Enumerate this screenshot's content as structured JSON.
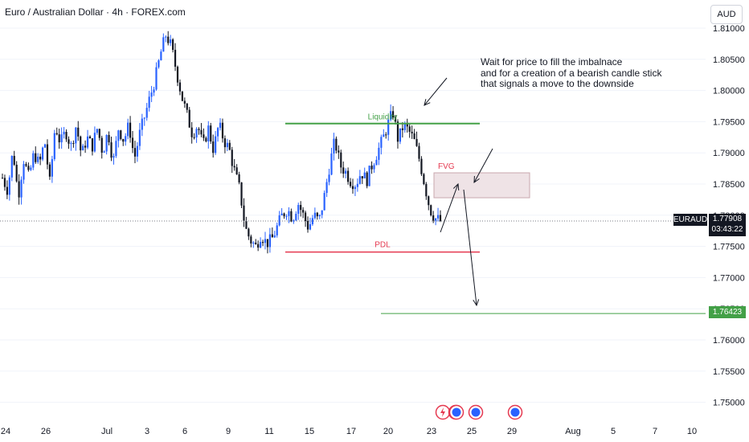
{
  "header": {
    "title": "Euro / Australian Dollar · 4h · FOREX.com",
    "currency_button": "AUD"
  },
  "annotation": {
    "text": "Wait for price to fill the imbalnace\nand for a creation of a bearish candle stick\nthat signals a move to the downside"
  },
  "labels": {
    "liquidity": "Liquidity",
    "fvg": "FVG",
    "pdl": "PDL"
  },
  "price_labels": {
    "ticker": "EURAUD",
    "current": "1.77908",
    "countdown": "03:43:22",
    "target": "1.76423"
  },
  "colors": {
    "up": "#2962ff",
    "down": "#131722",
    "liquidity": "#43a047",
    "pdl": "#e53950",
    "fvg_fill": "#efe3e6",
    "target": "#43a047"
  },
  "chart_data": {
    "type": "candlestick",
    "yaxis": {
      "ticks": [
        "1.81000",
        "1.80500",
        "1.80000",
        "1.79500",
        "1.79000",
        "1.78500",
        "1.78000",
        "1.77500",
        "1.77000",
        "1.76500",
        "1.76000",
        "1.75500",
        "1.75000"
      ],
      "range": [
        1.7455,
        1.8155
      ]
    },
    "xaxis": {
      "ticks": [
        "24",
        "26",
        "Jul",
        "3",
        "6",
        "9",
        "11",
        "15",
        "17",
        "20",
        "23",
        "25",
        "29",
        "Aug",
        "5",
        "7",
        "10"
      ]
    },
    "levels": {
      "liquidity": 1.7947,
      "pdl": 1.7741,
      "target": 1.76423,
      "current": 1.77908,
      "fvg": [
        1.7828,
        1.7868
      ]
    },
    "close_path": [
      1.786,
      1.784,
      1.7905,
      1.783,
      1.789,
      1.786,
      1.79,
      1.788,
      1.792,
      1.785,
      1.7945,
      1.7915,
      1.7935,
      1.791,
      1.7945,
      1.7895,
      1.7925,
      1.791,
      1.794,
      1.79,
      1.7935,
      1.7885,
      1.794,
      1.792,
      1.7945,
      1.789,
      1.793,
      1.796,
      1.799,
      1.802,
      1.806,
      1.809,
      1.807,
      1.803,
      1.799,
      1.796,
      1.793,
      1.7945,
      1.791,
      1.794,
      1.7905,
      1.7945,
      1.792,
      1.7905,
      1.787,
      1.784,
      1.778,
      1.776,
      1.775,
      1.777,
      1.7755,
      1.776,
      1.778,
      1.78,
      1.781,
      1.7795,
      1.782,
      1.78,
      1.778,
      1.78,
      1.779,
      1.783,
      1.788,
      1.792,
      1.788,
      1.787,
      1.7855,
      1.785,
      1.787,
      1.7855,
      1.788,
      1.79,
      1.792,
      1.7945,
      1.7965,
      1.792,
      1.7945,
      1.7935,
      1.792,
      1.789,
      1.785,
      1.781,
      1.7795,
      1.7791
    ],
    "events": [
      "lightning",
      "globe",
      "globe",
      "globe",
      "globe"
    ]
  }
}
